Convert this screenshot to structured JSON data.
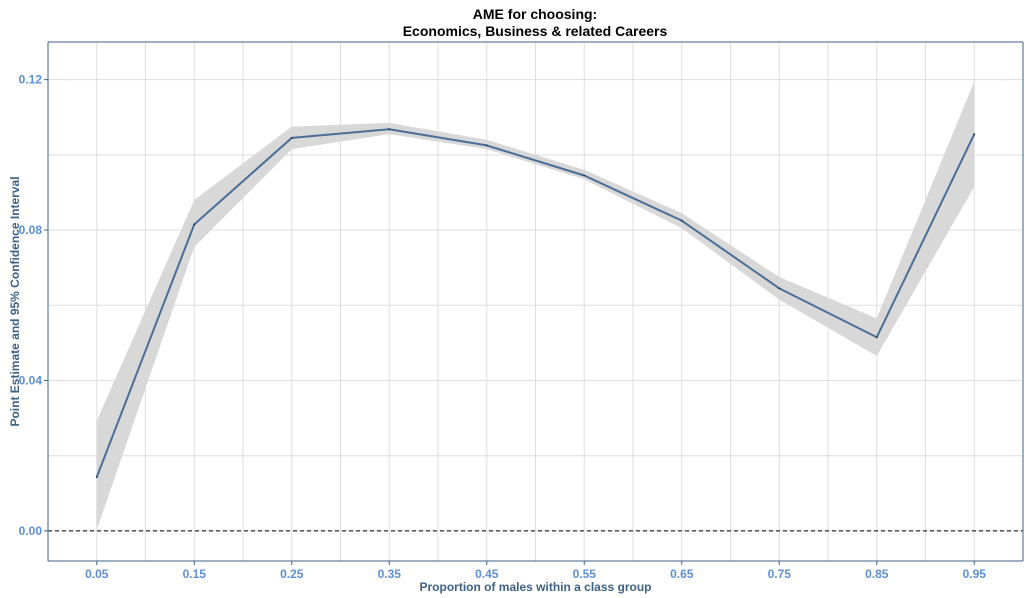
{
  "chart_data": {
    "type": "line",
    "title_line1": "AME for choosing:",
    "title_line2": "Economics, Business & related Careers",
    "xlabel": "Proportion of males within a class group",
    "ylabel": "Point Estimate and 95% Confidence Interval",
    "x": [
      0.05,
      0.15,
      0.25,
      0.35,
      0.45,
      0.55,
      0.65,
      0.75,
      0.85,
      0.95
    ],
    "x_tick_labels": [
      "0.05",
      "0.15",
      "0.25",
      "0.35",
      "0.45",
      "0.55",
      "0.65",
      "0.75",
      "0.85",
      "0.95"
    ],
    "y_ticks": [
      0,
      0.04,
      0.08,
      0.12
    ],
    "y_tick_labels": [
      "0.00",
      "0.04",
      "0.08",
      "0.12"
    ],
    "xlim": [
      0,
      1.0
    ],
    "ylim": [
      -0.008,
      0.13
    ],
    "grid": true,
    "reference_line": 0,
    "series": [
      {
        "values": [
          0.0143,
          0.0815,
          0.1045,
          0.1068,
          0.1025,
          0.0945,
          0.0825,
          0.0645,
          0.0515,
          0.1055
        ],
        "lower": [
          0.0003,
          0.0755,
          0.1015,
          0.1055,
          0.1015,
          0.0935,
          0.0805,
          0.0615,
          0.0465,
          0.0915
        ],
        "upper": [
          0.0293,
          0.088,
          0.1075,
          0.1085,
          0.104,
          0.096,
          0.0845,
          0.0675,
          0.0565,
          0.1195
        ]
      }
    ],
    "colors": {
      "line": "#4b6e96",
      "band": "#d6d6d6",
      "grid": "#dddddd",
      "axis": "#3e6186",
      "tick_label": "#5b8fd6",
      "axis_title": "#3e6186",
      "reference": "#000000"
    }
  }
}
